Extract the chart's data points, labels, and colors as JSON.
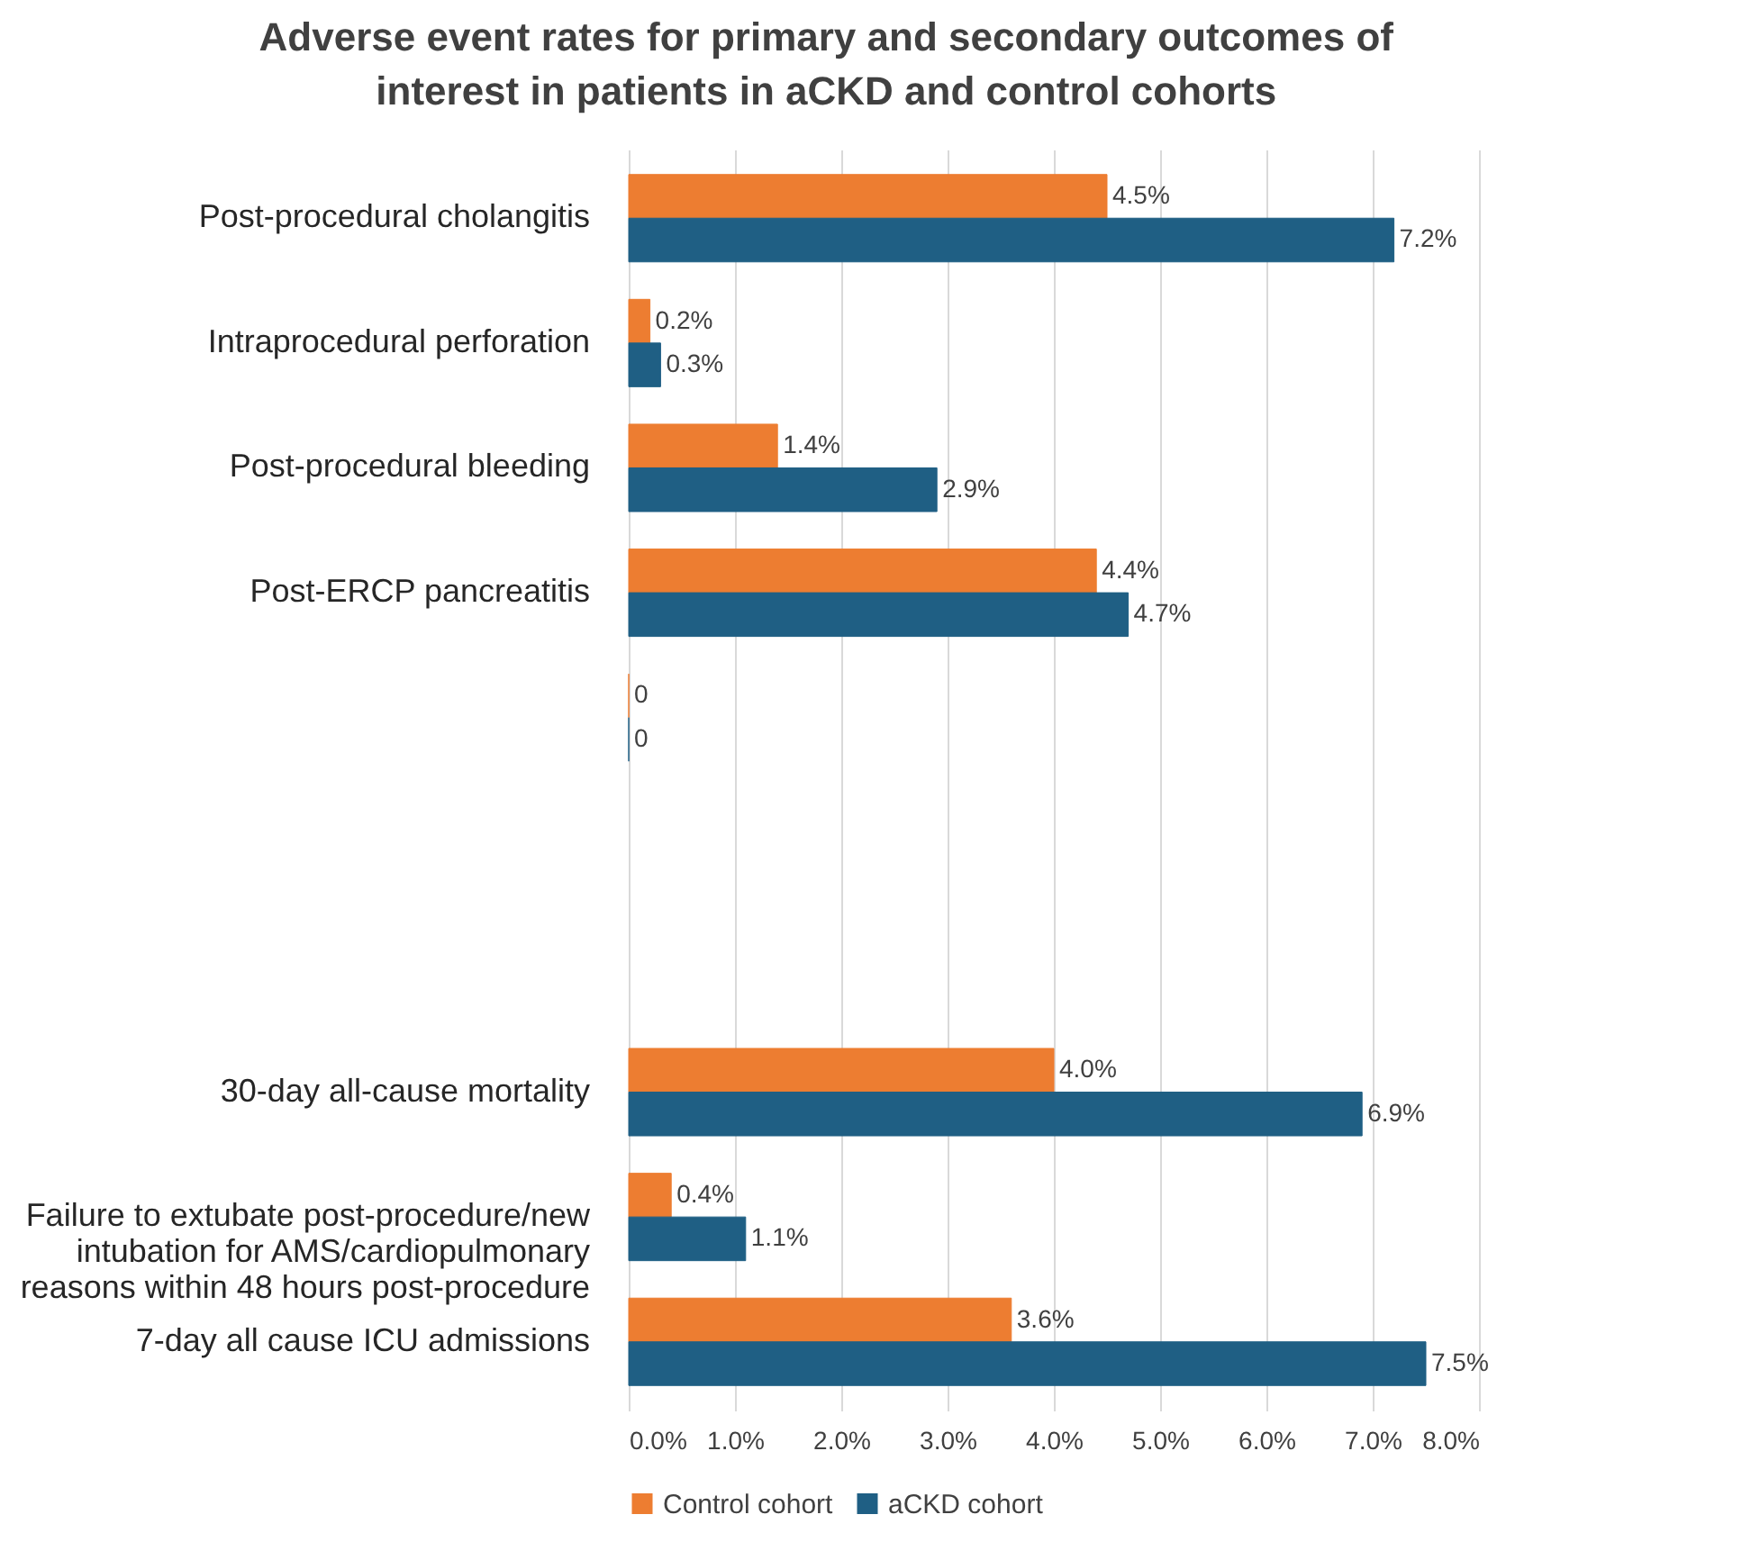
{
  "chart_data": {
    "type": "bar",
    "orientation": "horizontal",
    "title": "Adverse event rates for primary and secondary outcomes of interest in patients in aCKD and control cohorts",
    "categories": [
      "Post-procedural cholangitis",
      "Intraprocedural perforation",
      "Post-procedural bleeding",
      "Post-ERCP pancreatitis",
      null,
      null,
      null,
      "30-day all-cause mortality",
      "Failure to extubate post-procedure/new intubation for AMS/cardiopulmonary reasons within 48 hours post-procedure",
      "7-day all cause ICU admissions"
    ],
    "series": [
      {
        "name": "Control cohort",
        "color": "#ed7d31",
        "values": [
          4.5,
          0.2,
          1.4,
          4.4,
          0,
          null,
          null,
          4.0,
          0.4,
          3.6
        ],
        "value_labels": [
          "4.5%",
          "0.2%",
          "1.4%",
          "4.4%",
          "0",
          null,
          null,
          "4.0%",
          "0.4%",
          "3.6%"
        ]
      },
      {
        "name": "aCKD cohort",
        "color": "#1f5f84",
        "values": [
          7.2,
          0.3,
          2.9,
          4.7,
          0,
          null,
          null,
          6.9,
          1.1,
          7.5
        ],
        "value_labels": [
          "7.2%",
          "0.3%",
          "2.9%",
          "4.7%",
          "0",
          null,
          null,
          "6.9%",
          "1.1%",
          "7.5%"
        ]
      }
    ],
    "xlim": [
      0,
      8
    ],
    "xticks": [
      {
        "value": 0,
        "label": "0.0%"
      },
      {
        "value": 1,
        "label": "1.0%"
      },
      {
        "value": 2,
        "label": "2.0%"
      },
      {
        "value": 3,
        "label": "3.0%"
      },
      {
        "value": 4,
        "label": "4.0%"
      },
      {
        "value": 5,
        "label": "5.0%"
      },
      {
        "value": 6,
        "label": "6.0%"
      },
      {
        "value": 7,
        "label": "7.0%"
      },
      {
        "value": 8,
        "label": "8.0%"
      }
    ],
    "grid": "x",
    "legend": "bottom"
  }
}
